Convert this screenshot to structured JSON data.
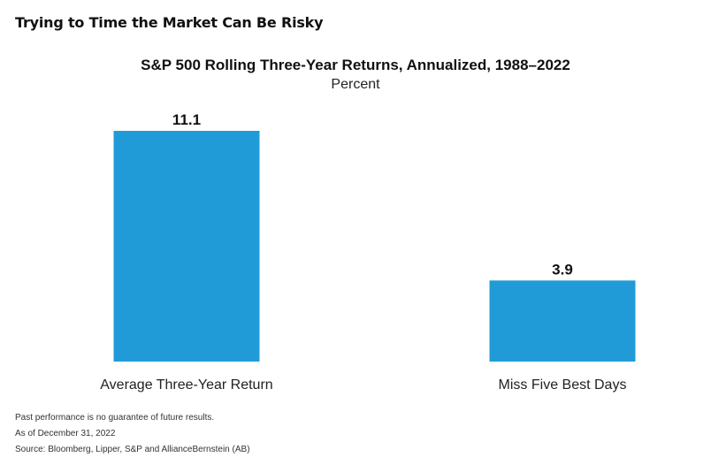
{
  "header": {
    "title": "Trying to Time the Market Can Be Risky"
  },
  "chart_data": {
    "type": "bar",
    "title": "S&P 500 Rolling Three-Year Returns, Annualized, 1988–2022",
    "subtitle": "Percent",
    "categories": [
      "Average Three-Year Return",
      "Miss Five Best Days"
    ],
    "values": [
      11.1,
      3.9
    ],
    "value_labels": [
      "11.1",
      "3.9"
    ],
    "xlabel": "",
    "ylabel": "",
    "ylim": [
      0,
      11.1
    ],
    "grid": false,
    "legend": "none",
    "bar_color": "#219bd7"
  },
  "footnotes": {
    "line1": "Past performance is no guarantee of future results.",
    "line2": "As of December 31, 2022",
    "line3": "Source: Bloomberg, Lipper, S&P and AllianceBernstein (AB)"
  }
}
